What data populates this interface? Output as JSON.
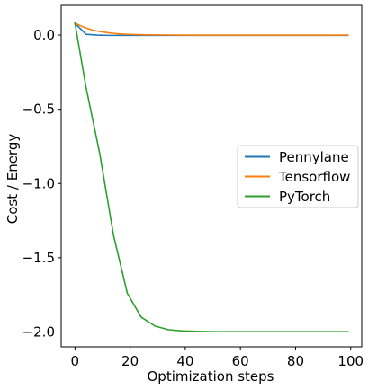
{
  "chart_data": {
    "type": "line",
    "title": "",
    "xlabel": "Optimization steps",
    "ylabel": "Cost / Energy",
    "xlim": [
      -5,
      104
    ],
    "ylim": [
      -2.1,
      0.2
    ],
    "xticks": [
      0,
      20,
      40,
      60,
      80,
      100
    ],
    "yticks": [
      0.0,
      -0.5,
      -1.0,
      -1.5,
      -2.0
    ],
    "xtick_labels": [
      "0",
      "20",
      "40",
      "60",
      "80",
      "100"
    ],
    "ytick_labels": [
      "0.0",
      "−0.5",
      "−1.0",
      "−1.5",
      "−2.0"
    ],
    "grid": false,
    "legend_position": "center-right",
    "series": [
      {
        "name": "Pennylane",
        "color": "#1f77b4",
        "x": [
          0,
          4,
          8,
          12,
          16,
          20,
          30,
          40,
          60,
          80,
          99
        ],
        "y": [
          0.08,
          0.005,
          0.0,
          -0.002,
          -0.002,
          -0.002,
          -0.002,
          -0.002,
          -0.002,
          -0.002,
          -0.002
        ]
      },
      {
        "name": "Tensorflow",
        "color": "#ff7f0e",
        "x": [
          0,
          3,
          6,
          9,
          12,
          15,
          18,
          21,
          25,
          30,
          40,
          60,
          80,
          99
        ],
        "y": [
          0.08,
          0.055,
          0.035,
          0.024,
          0.016,
          0.01,
          0.006,
          0.004,
          0.002,
          0.001,
          0.0,
          0.0,
          0.0,
          0.0
        ]
      },
      {
        "name": "PyTorch",
        "color": "#2ca02c",
        "x": [
          0,
          4,
          9,
          14,
          19,
          24,
          29,
          34,
          39,
          44,
          50,
          60,
          80,
          99
        ],
        "y": [
          0.08,
          -0.35,
          -0.8,
          -1.35,
          -1.74,
          -1.9,
          -1.96,
          -1.985,
          -1.993,
          -1.996,
          -1.998,
          -1.998,
          -1.998,
          -1.998
        ]
      }
    ]
  }
}
